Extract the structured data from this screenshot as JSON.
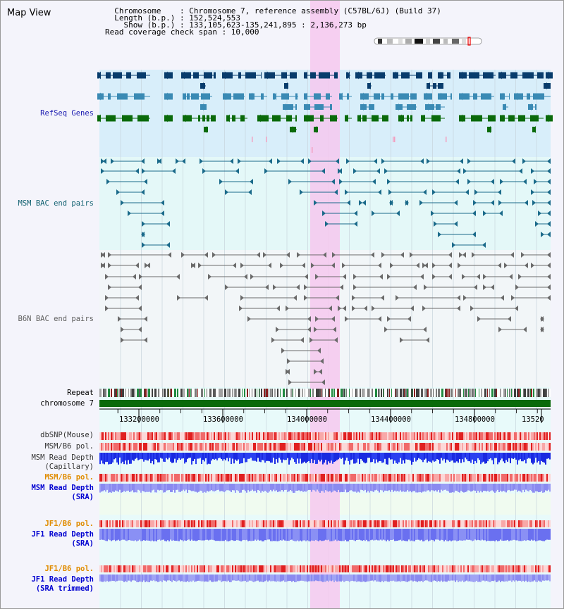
{
  "view": {
    "title": "Map View",
    "header_lines": [
      "  Chromosome    : Chromosome 7, reference assembly (C57BL/6J) (Build 37)",
      "  Length (b.p.) : 152,524,553",
      "    Show (b.p.) : 133,105,623-135,241,895 : 2,136,273 bp",
      "Read coverage check span : 10,000"
    ]
  },
  "labels": {
    "refseq": "RefSeq Genes",
    "msm_bac": "MSM BAC end pairs",
    "b6n_bac": "B6N BAC end pairs",
    "repeat": "Repeat",
    "chromosome": "chromosome 7",
    "dbsnp": "dbSNP(Mouse)",
    "msm_b6_pol_a": "MSM/B6 pol.",
    "msm_read_depth_cap_1": "MSM Read Depth",
    "msm_read_depth_cap_2": "(Capillary)",
    "msm_b6_pol_b": "MSM/B6 pol.",
    "msm_read_depth_sra_1": "MSM Read Depth",
    "msm_read_depth_sra_2": "(SRA)",
    "jf1_b6_pol_a": "JF1/B6 pol.",
    "jf1_read_depth_sra_1": "JF1 Read Depth",
    "jf1_read_depth_sra_2": "(SRA)",
    "jf1_b6_pol_b": "JF1/B6 pol.",
    "jf1_read_depth_trim_1": "JF1 Read Depth",
    "jf1_read_depth_trim_2": "(SRA trimmed)"
  },
  "axis": {
    "ticks": [
      "133200000",
      "133600000",
      "134000000",
      "134400000",
      "134800000",
      "13520"
    ]
  },
  "colors": {
    "refseq_label": "#1a1ab0",
    "msm_bac_label": "#106070",
    "b6n_bac_label": "#606060",
    "orange_label": "#e08c00",
    "blue_label": "#0000d0",
    "highlight": "#f6c8ee",
    "chromosome": "#0a6a0a",
    "gene_dark": "#083c6c",
    "gene_mid": "#3a8ab4",
    "gene_green": "#0a6a0a",
    "msm_bac": "#1a6a8a",
    "b6n_bac": "#6a6a6a"
  }
}
